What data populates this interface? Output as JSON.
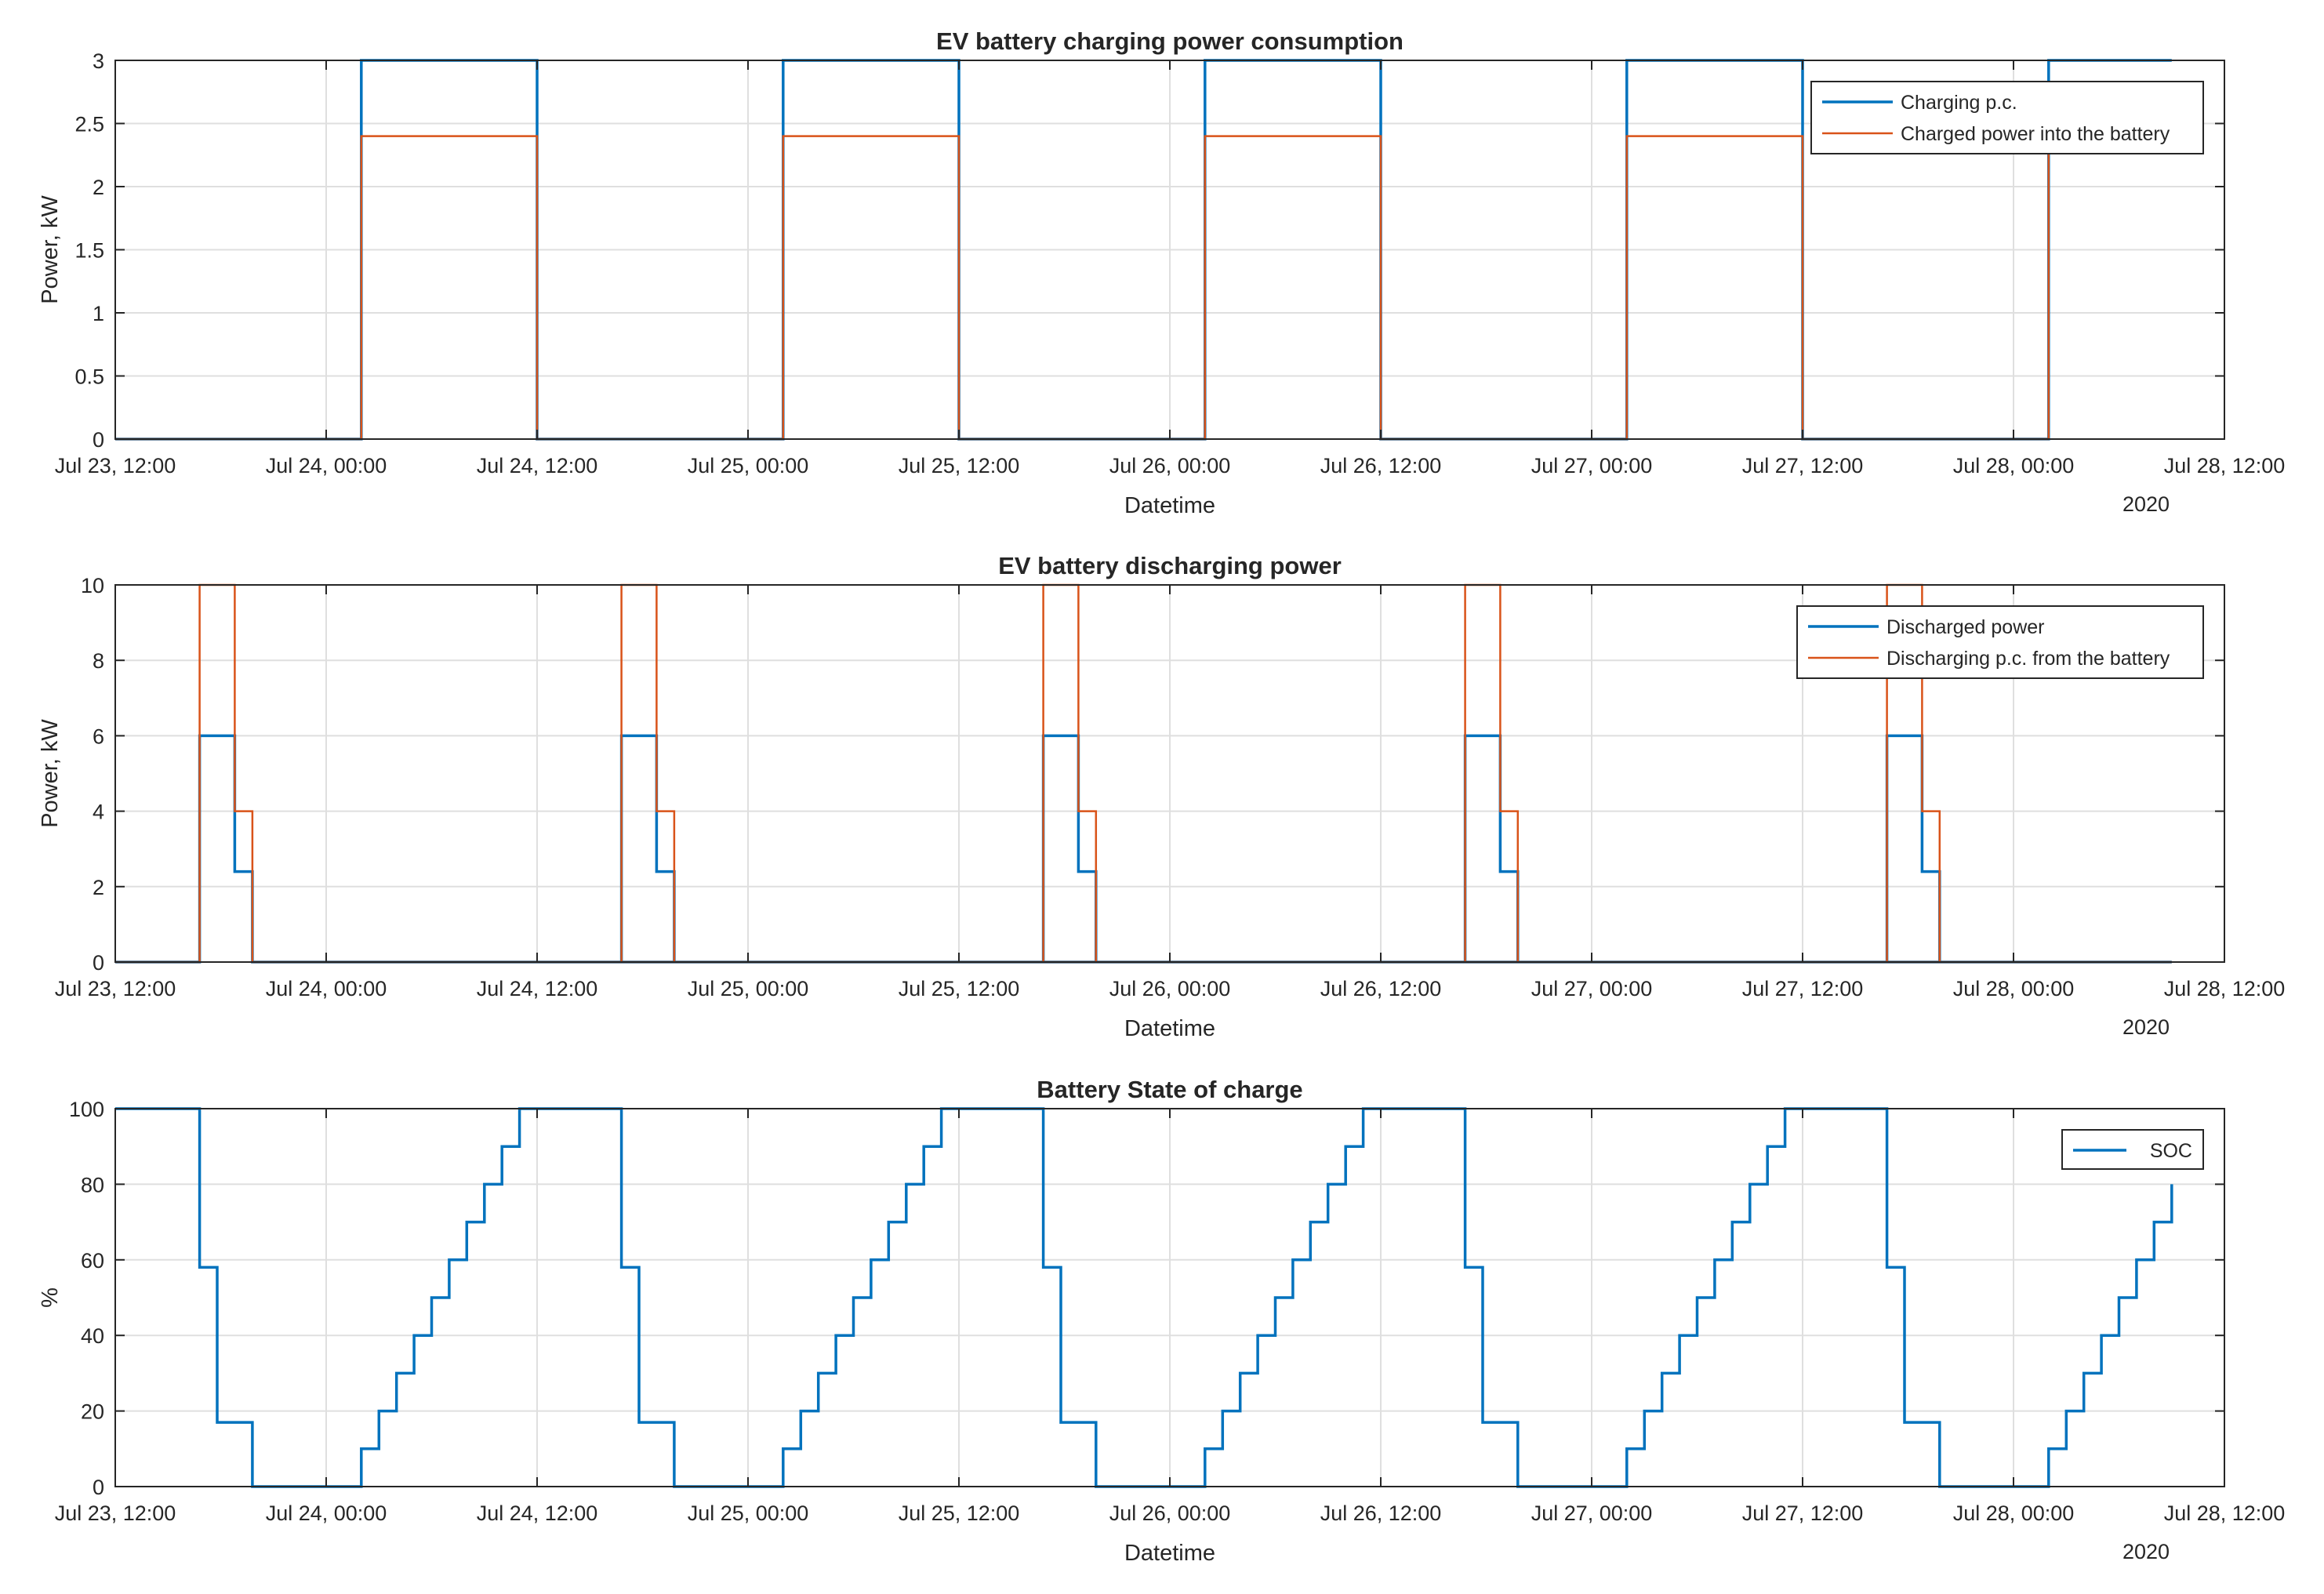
{
  "chart_data": [
    {
      "type": "line",
      "title": "EV battery charging power consumption",
      "xlabel": "Datetime",
      "ylabel": "Power, kW",
      "year_label": "2020",
      "xlim": [
        0,
        120
      ],
      "x_unit": "hours since Jul 23, 12:00",
      "ylim": [
        0,
        3
      ],
      "yticks": [
        0,
        0.5,
        1,
        1.5,
        2,
        2.5,
        3
      ],
      "ytick_labels": [
        "0",
        "0.5",
        "1",
        "1.5",
        "2",
        "2.5",
        "3"
      ],
      "xticks": [
        0,
        12,
        24,
        36,
        48,
        60,
        72,
        84,
        96,
        108,
        120
      ],
      "xtick_labels": [
        "Jul 23, 12:00",
        "Jul 24, 00:00",
        "Jul 24, 12:00",
        "Jul 25, 00:00",
        "Jul 25, 12:00",
        "Jul 26, 00:00",
        "Jul 26, 12:00",
        "Jul 27, 00:00",
        "Jul 27, 12:00",
        "Jul 28, 00:00",
        "Jul 28, 12:00"
      ],
      "grid": true,
      "legend_position": "top-right",
      "series": [
        {
          "name": "Charging p.c.",
          "color": "#0072BD",
          "width": 3.5,
          "x": [
            0,
            14,
            14,
            24,
            24,
            38,
            38,
            48,
            48,
            62,
            62,
            72,
            72,
            86,
            86,
            96,
            96,
            110,
            110,
            117
          ],
          "y": [
            0,
            0,
            3,
            3,
            0,
            0,
            3,
            3,
            0,
            0,
            3,
            3,
            0,
            0,
            3,
            3,
            0,
            0,
            3,
            3
          ]
        },
        {
          "name": "Charged power into the battery",
          "color": "#D95319",
          "width": 2.5,
          "x": [
            0,
            14,
            14,
            24,
            24,
            38,
            38,
            48,
            48,
            62,
            62,
            72,
            72,
            86,
            86,
            96,
            96,
            110,
            110,
            117
          ],
          "y": [
            0,
            0,
            2.4,
            2.4,
            0,
            0,
            2.4,
            2.4,
            0,
            0,
            2.4,
            2.4,
            0,
            0,
            2.4,
            2.4,
            0,
            0,
            2.4,
            2.4
          ]
        }
      ]
    },
    {
      "type": "line",
      "title": "EV battery discharging power",
      "xlabel": "Datetime",
      "ylabel": "Power, kW",
      "year_label": "2020",
      "xlim": [
        0,
        120
      ],
      "x_unit": "hours since Jul 23, 12:00",
      "ylim": [
        0,
        10
      ],
      "yticks": [
        0,
        2,
        4,
        6,
        8,
        10
      ],
      "ytick_labels": [
        "0",
        "2",
        "4",
        "6",
        "8",
        "10"
      ],
      "xticks": [
        0,
        12,
        24,
        36,
        48,
        60,
        72,
        84,
        96,
        108,
        120
      ],
      "xtick_labels": [
        "Jul 23, 12:00",
        "Jul 24, 00:00",
        "Jul 24, 12:00",
        "Jul 25, 00:00",
        "Jul 25, 12:00",
        "Jul 26, 00:00",
        "Jul 26, 12:00",
        "Jul 27, 00:00",
        "Jul 27, 12:00",
        "Jul 28, 00:00",
        "Jul 28, 12:00"
      ],
      "grid": true,
      "legend_position": "top-right",
      "series": [
        {
          "name": "Discharged power",
          "color": "#0072BD",
          "width": 3.5,
          "x": [
            0,
            4.8,
            4.8,
            6.8,
            6.8,
            7.8,
            7.8,
            117
          ],
          "y": [
            0,
            0,
            6,
            6,
            2.4,
            2.4,
            0,
            0
          ],
          "repeat_every": 24,
          "repeat_count": 5
        },
        {
          "name": "Discharging p.c. from the battery",
          "color": "#D95319",
          "width": 2.5,
          "x": [
            0,
            4.8,
            4.8,
            6.8,
            6.8,
            7.8,
            7.8,
            117
          ],
          "y": [
            0,
            0,
            10,
            10,
            4,
            4,
            0,
            0
          ],
          "repeat_every": 24,
          "repeat_count": 5
        }
      ]
    },
    {
      "type": "line",
      "title": "Battery State of charge",
      "xlabel": "Datetime",
      "ylabel": "%",
      "year_label": "2020",
      "xlim": [
        0,
        120
      ],
      "x_unit": "hours since Jul 23, 12:00",
      "ylim": [
        0,
        100
      ],
      "yticks": [
        0,
        20,
        40,
        60,
        80,
        100
      ],
      "ytick_labels": [
        "0",
        "20",
        "40",
        "60",
        "80",
        "100"
      ],
      "xticks": [
        0,
        12,
        24,
        36,
        48,
        60,
        72,
        84,
        96,
        108,
        120
      ],
      "xtick_labels": [
        "Jul 23, 12:00",
        "Jul 24, 00:00",
        "Jul 24, 12:00",
        "Jul 25, 00:00",
        "Jul 25, 12:00",
        "Jul 26, 00:00",
        "Jul 26, 12:00",
        "Jul 27, 00:00",
        "Jul 27, 12:00",
        "Jul 28, 00:00",
        "Jul 28, 12:00"
      ],
      "grid": true,
      "legend_position": "top-right",
      "series": [
        {
          "name": "SOC",
          "color": "#0072BD",
          "width": 3.5,
          "x": [
            0,
            4.8,
            4.8,
            5.8,
            5.8,
            6.8,
            6.8,
            7.8,
            7.8,
            14,
            14,
            15,
            15,
            16,
            16,
            17,
            17,
            18,
            18,
            19,
            19,
            20,
            20,
            21,
            21,
            22,
            22,
            23,
            23,
            24,
            24,
            28.8
          ],
          "y": [
            100,
            100,
            58,
            58,
            17,
            17,
            17,
            17,
            0,
            0,
            10,
            10,
            20,
            20,
            30,
            30,
            40,
            40,
            50,
            50,
            60,
            60,
            70,
            70,
            80,
            80,
            90,
            90,
            100,
            100,
            100,
            100
          ],
          "repeat_every": 24,
          "repeat_count": 5,
          "end_x": 117,
          "end_y": 80
        }
      ]
    }
  ]
}
